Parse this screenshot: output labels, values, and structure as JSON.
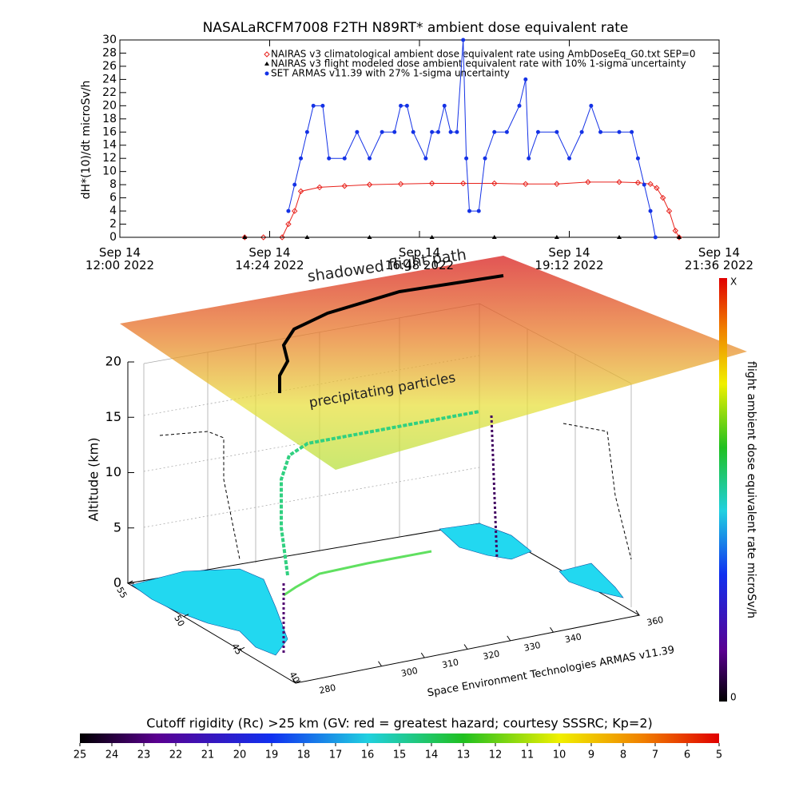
{
  "chart_data": [
    {
      "type": "line",
      "title": "NASALaRCFM7008  F2TH N89RT* ambient dose equivalent rate",
      "ylabel": "dH*(10)/dt microSv/h",
      "xlim": [
        12,
        21.6
      ],
      "xticks": [
        {
          "value": 12,
          "label": "Sep 14\n12:00 2022"
        },
        {
          "value": 14.4,
          "label": "Sep 14\n14:24 2022"
        },
        {
          "value": 16.8,
          "label": "Sep 14\n16:48 2022"
        },
        {
          "value": 19.2,
          "label": "Sep 14\n19:12 2022"
        },
        {
          "value": 21.6,
          "label": "Sep 14\n21:36 2022"
        }
      ],
      "ylim": [
        0,
        30
      ],
      "yticks": [
        0,
        2,
        4,
        6,
        8,
        10,
        12,
        14,
        16,
        18,
        20,
        22,
        24,
        26,
        28,
        30
      ],
      "series": [
        {
          "name": "NAIRAS v3 climatological ambient dose equivalent rate using AmbDoseEq_G0.txt SEP=0",
          "color": "#e8221c",
          "marker": "diamond",
          "x": [
            14.0,
            14.3,
            14.6,
            14.7,
            14.8,
            14.9,
            15.2,
            15.6,
            16.0,
            16.5,
            17.0,
            17.5,
            18.0,
            18.5,
            19.0,
            19.5,
            20.0,
            20.3,
            20.5,
            20.6,
            20.7,
            20.8,
            20.9,
            20.96
          ],
          "values": [
            0,
            0,
            0,
            2,
            4,
            7,
            7.6,
            7.8,
            8,
            8.1,
            8.2,
            8.2,
            8.2,
            8.1,
            8.1,
            8.4,
            8.4,
            8.3,
            8.1,
            7.5,
            6,
            4,
            1,
            0
          ]
        },
        {
          "name": "NAIRAS v3 flight modeled dose ambient equivalent rate with 10% 1-sigma uncertainty",
          "color": "#000000",
          "marker": "triangle",
          "x": [
            14.0,
            15.0,
            16.0,
            17.0,
            18.0,
            19.0,
            20.0,
            20.96
          ],
          "values": [
            0,
            0,
            0,
            0,
            0,
            0,
            0,
            0
          ]
        },
        {
          "name": "SET ARMAS v11.39 with 27% 1-sigma uncertainty",
          "color": "#1432e6",
          "marker": "dot",
          "x": [
            14.7,
            14.8,
            14.9,
            15.0,
            15.1,
            15.25,
            15.35,
            15.6,
            15.8,
            16.0,
            16.2,
            16.4,
            16.5,
            16.6,
            16.7,
            16.9,
            17.0,
            17.1,
            17.2,
            17.3,
            17.4,
            17.5,
            17.55,
            17.6,
            17.75,
            17.85,
            18.0,
            18.2,
            18.4,
            18.5,
            18.55,
            18.7,
            19.0,
            19.2,
            19.4,
            19.55,
            19.7,
            20.0,
            20.2,
            20.3,
            20.4,
            20.5,
            20.58
          ],
          "values": [
            4,
            8,
            12,
            16,
            20,
            20,
            12,
            12,
            16,
            12,
            16,
            16,
            20,
            20,
            16,
            12,
            16,
            16,
            20,
            16,
            16,
            30,
            12,
            4,
            4,
            12,
            16,
            16,
            20,
            24,
            12,
            16,
            16,
            12,
            16,
            20,
            16,
            16,
            16,
            12,
            8,
            4,
            0
          ]
        }
      ]
    },
    {
      "type": "surface3d",
      "annotations": [
        "shadowed flight path",
        "precipitating particles"
      ],
      "zlabel": "Altitude (km)",
      "zlim": [
        0,
        20
      ],
      "zticks": [
        0,
        5,
        10,
        15,
        20
      ],
      "xlim": [
        280,
        360
      ],
      "xticks": [
        280,
        300,
        310,
        320,
        330,
        340,
        360
      ],
      "ylim": [
        55,
        40
      ],
      "yticks": [
        55,
        50,
        45,
        40
      ],
      "credit": "Space Environment Technologies ARMAS v11.39"
    },
    {
      "type": "colorbar",
      "orientation": "vertical",
      "title": "flight ambient dose equivalent rate microSv/h",
      "tick_labels": [
        "X",
        "0"
      ]
    },
    {
      "type": "colorbar",
      "orientation": "horizontal",
      "title": "Cutoff rigidity (Rc) >25 km (GV: red = greatest hazard; courtesy SSSRC; Kp=2)",
      "ticks": [
        25,
        24,
        23,
        22,
        21,
        20,
        19,
        18,
        17,
        16,
        15,
        14,
        13,
        12,
        11,
        10,
        9,
        8,
        7,
        6,
        5
      ]
    }
  ]
}
